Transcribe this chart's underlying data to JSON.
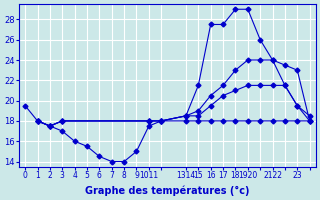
{
  "xlabel": "Graphe des températures (°c)",
  "bg_color": "#cce8e8",
  "line_color": "#0000cc",
  "grid_color": "#ffffff",
  "ylim": [
    13.5,
    29.5
  ],
  "xlim": [
    -0.5,
    23.5
  ],
  "yticks": [
    14,
    16,
    18,
    20,
    22,
    24,
    26,
    28
  ],
  "xtick_positions": [
    0,
    1,
    2,
    3,
    4,
    5,
    6,
    7,
    8,
    9,
    10,
    11,
    13,
    14,
    15,
    16,
    17,
    18,
    19,
    20,
    21,
    22,
    23
  ],
  "xtick_labels": [
    "0",
    "1",
    "2",
    "3",
    "4",
    "5",
    "6",
    "7",
    "8",
    "9",
    "1011",
    "",
    "1314",
    "15",
    "16",
    "17",
    "18",
    "1920",
    "",
    "2122",
    "",
    "23",
    ""
  ],
  "series": [
    {
      "x": [
        0,
        1,
        2,
        3,
        4,
        5,
        6,
        7,
        8,
        9,
        10,
        11,
        13,
        14,
        15,
        16,
        17,
        18,
        19,
        20,
        21,
        22,
        23
      ],
      "y": [
        19.5,
        18.0,
        17.5,
        17.0,
        16.0,
        15.5,
        14.5,
        14.0,
        14.0,
        15.0,
        17.5,
        18.0,
        18.5,
        21.5,
        27.5,
        27.5,
        29.0,
        29.0,
        26.0,
        24.0,
        21.5,
        19.5,
        18.5
      ]
    },
    {
      "x": [
        1,
        2,
        3,
        10,
        11,
        13,
        14,
        15,
        16,
        17,
        18,
        19,
        20,
        21,
        22,
        23
      ],
      "y": [
        18.0,
        17.5,
        18.0,
        18.0,
        18.0,
        18.5,
        19.0,
        20.5,
        21.5,
        23.0,
        24.0,
        24.0,
        24.0,
        23.5,
        23.0,
        18.0
      ]
    },
    {
      "x": [
        1,
        2,
        3,
        10,
        11,
        13,
        14,
        15,
        16,
        17,
        18,
        19,
        20,
        21,
        22,
        23
      ],
      "y": [
        18.0,
        17.5,
        18.0,
        18.0,
        18.0,
        18.5,
        18.5,
        19.5,
        20.5,
        21.0,
        21.5,
        21.5,
        21.5,
        21.5,
        19.5,
        18.0
      ]
    },
    {
      "x": [
        1,
        2,
        3,
        10,
        11,
        13,
        14,
        15,
        16,
        17,
        18,
        19,
        20,
        21,
        22,
        23
      ],
      "y": [
        18.0,
        17.5,
        18.0,
        18.0,
        18.0,
        18.0,
        18.0,
        18.0,
        18.0,
        18.0,
        18.0,
        18.0,
        18.0,
        18.0,
        18.0,
        18.0
      ]
    }
  ]
}
